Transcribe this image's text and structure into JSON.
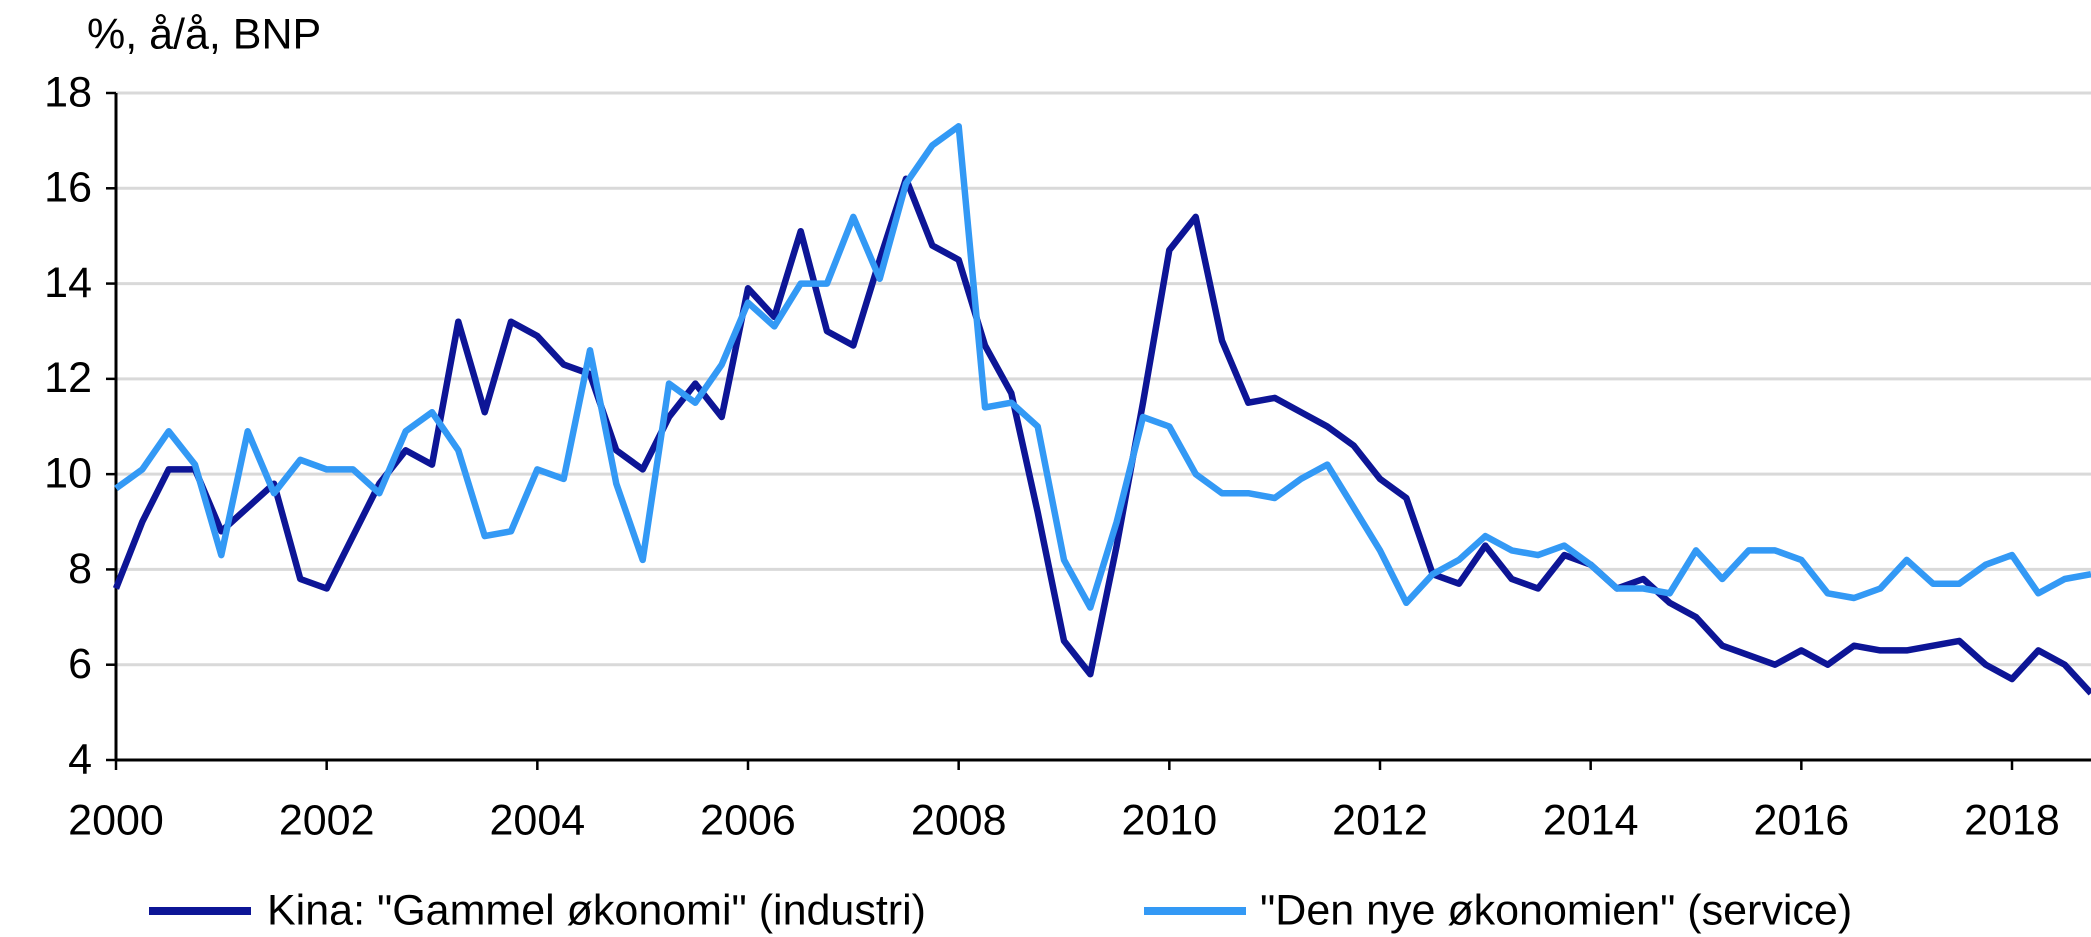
{
  "chart_data": {
    "type": "line",
    "y_axis_label": "%, å/å, BNP",
    "x": [
      2000,
      2000.25,
      2000.5,
      2000.75,
      2001,
      2001.25,
      2001.5,
      2001.75,
      2002,
      2002.25,
      2002.5,
      2002.75,
      2003,
      2003.25,
      2003.5,
      2003.75,
      2004,
      2004.25,
      2004.5,
      2004.75,
      2005,
      2005.25,
      2005.5,
      2005.75,
      2006,
      2006.25,
      2006.5,
      2006.75,
      2007,
      2007.25,
      2007.5,
      2007.75,
      2008,
      2008.25,
      2008.5,
      2008.75,
      2009,
      2009.25,
      2009.5,
      2009.75,
      2010,
      2010.25,
      2010.5,
      2010.75,
      2011,
      2011.25,
      2011.5,
      2011.75,
      2012,
      2012.25,
      2012.5,
      2012.75,
      2013,
      2013.25,
      2013.5,
      2013.75,
      2014,
      2014.25,
      2014.5,
      2014.75,
      2015,
      2015.25,
      2015.5,
      2015.75,
      2016,
      2016.25,
      2016.5,
      2016.75,
      2017,
      2017.25,
      2017.5,
      2017.75,
      2018,
      2018.25,
      2018.5,
      2018.75
    ],
    "series": [
      {
        "name": "Kina: \"Gammel økonomi\" (industri)",
        "color": "#0d1596",
        "values": [
          7.6,
          9.0,
          10.1,
          10.1,
          8.8,
          9.3,
          9.8,
          7.8,
          7.6,
          8.7,
          9.8,
          10.5,
          10.2,
          13.2,
          11.3,
          13.2,
          12.9,
          12.3,
          12.1,
          10.5,
          10.1,
          11.2,
          11.9,
          11.2,
          13.9,
          13.3,
          15.1,
          13.0,
          12.7,
          14.5,
          16.2,
          14.8,
          14.5,
          12.7,
          11.7,
          9.2,
          6.5,
          5.8,
          8.5,
          11.5,
          14.7,
          15.4,
          12.8,
          11.5,
          11.6,
          11.3,
          11.0,
          10.6,
          9.9,
          9.5,
          7.9,
          7.7,
          8.5,
          7.8,
          7.6,
          8.3,
          8.1,
          7.6,
          7.8,
          7.3,
          7.0,
          6.4,
          6.2,
          6.0,
          6.3,
          6.0,
          6.4,
          6.3,
          6.3,
          6.4,
          6.5,
          6.0,
          5.7,
          6.3,
          6.0,
          5.4
        ]
      },
      {
        "name": "\"Den nye økonomien\" (service)",
        "color": "#3399f5",
        "values": [
          9.7,
          10.1,
          10.9,
          10.2,
          8.3,
          10.9,
          9.6,
          10.3,
          10.1,
          10.1,
          9.6,
          10.9,
          11.3,
          10.5,
          8.7,
          8.8,
          10.1,
          9.9,
          12.6,
          9.8,
          8.2,
          11.9,
          11.5,
          12.3,
          13.6,
          13.1,
          14.0,
          14.0,
          15.4,
          14.1,
          16.1,
          16.9,
          17.3,
          11.4,
          11.5,
          11.0,
          8.2,
          7.2,
          9.0,
          11.2,
          11.0,
          10.0,
          9.6,
          9.6,
          9.5,
          9.9,
          10.2,
          9.3,
          8.4,
          7.3,
          7.9,
          8.2,
          8.7,
          8.4,
          8.3,
          8.5,
          8.1,
          7.6,
          7.6,
          7.5,
          8.4,
          7.8,
          8.4,
          8.4,
          8.2,
          7.5,
          7.4,
          7.6,
          8.2,
          7.7,
          7.7,
          8.1,
          8.3,
          7.5,
          7.8,
          7.9
        ]
      }
    ],
    "xlim": [
      2000,
      2018.75
    ],
    "xticks": [
      2000,
      2002,
      2004,
      2006,
      2008,
      2010,
      2012,
      2014,
      2016,
      2018
    ],
    "ylim": [
      4,
      18
    ],
    "yticks": [
      4,
      6,
      8,
      10,
      12,
      14,
      16,
      18
    ],
    "grid": true,
    "legend": "bottom"
  }
}
